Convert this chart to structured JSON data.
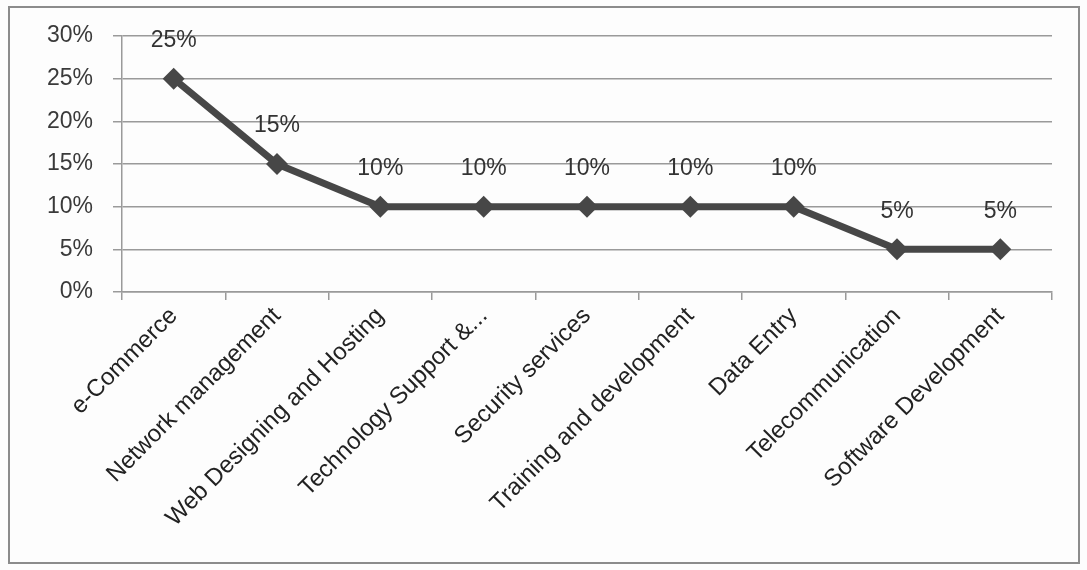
{
  "chart_data": {
    "type": "line",
    "categories": [
      "e-Commerce",
      "Network management",
      "Web Designing and Hosting",
      "Technology Support &...",
      "Security services",
      "Training and development",
      "Data Entry",
      "Telecommunication",
      "Software Development"
    ],
    "series": [
      {
        "color": "#474747",
        "values": [
          25,
          15,
          10,
          10,
          10,
          10,
          10,
          5,
          5
        ],
        "value_labels": [
          "25%",
          "15%",
          "10%",
          "10%",
          "10%",
          "10%",
          "10%",
          "5%",
          "5%"
        ]
      }
    ],
    "ylim": [
      0,
      30
    ],
    "yticks": [
      {
        "value": 0,
        "label": "0%"
      },
      {
        "value": 5,
        "label": "5%"
      },
      {
        "value": 10,
        "label": "10%"
      },
      {
        "value": 15,
        "label": "15%"
      },
      {
        "value": 20,
        "label": "20%"
      },
      {
        "value": 25,
        "label": "25%"
      },
      {
        "value": 30,
        "label": "30%"
      }
    ],
    "grid": "y",
    "legend": false,
    "marker": "diamond",
    "line_style": "solid"
  }
}
